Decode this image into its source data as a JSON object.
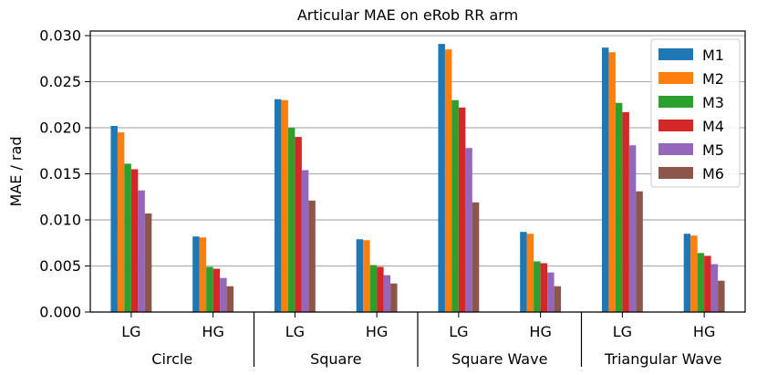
{
  "chart_data": {
    "type": "bar",
    "title": "Articular MAE on eRob RR arm",
    "xlabel": "",
    "ylabel": "MAE / rad",
    "ylim": [
      0,
      0.0305
    ],
    "yticks": [
      "0.000",
      "0.005",
      "0.010",
      "0.015",
      "0.020",
      "0.025",
      "0.030"
    ],
    "ytick_values": [
      0,
      0.005,
      0.01,
      0.015,
      0.02,
      0.025,
      0.03
    ],
    "grid": "y",
    "legend_position": "top-right",
    "categories": [
      "LG",
      "HG",
      "LG",
      "HG",
      "LG",
      "HG",
      "LG",
      "HG"
    ],
    "groups": [
      "Circle",
      "Square",
      "Square Wave",
      "Triangular Wave"
    ],
    "series": [
      {
        "name": "M1",
        "color": "#1f77b4",
        "values": [
          0.0202,
          0.0082,
          0.0231,
          0.0079,
          0.0291,
          0.0087,
          0.0287,
          0.0085
        ]
      },
      {
        "name": "M2",
        "color": "#ff7f0e",
        "values": [
          0.0195,
          0.0081,
          0.023,
          0.0078,
          0.0285,
          0.0085,
          0.0282,
          0.0083
        ]
      },
      {
        "name": "M3",
        "color": "#2ca02c",
        "values": [
          0.0161,
          0.0049,
          0.02,
          0.0051,
          0.023,
          0.0055,
          0.0227,
          0.0064
        ]
      },
      {
        "name": "M4",
        "color": "#d62728",
        "values": [
          0.0155,
          0.0047,
          0.019,
          0.0049,
          0.0222,
          0.0053,
          0.0217,
          0.0061
        ]
      },
      {
        "name": "M5",
        "color": "#9467bd",
        "values": [
          0.0132,
          0.0037,
          0.0154,
          0.004,
          0.0178,
          0.0043,
          0.0181,
          0.0052
        ]
      },
      {
        "name": "M6",
        "color": "#8c564b",
        "values": [
          0.0107,
          0.0028,
          0.0121,
          0.0031,
          0.0119,
          0.0028,
          0.0131,
          0.0034
        ]
      }
    ]
  }
}
